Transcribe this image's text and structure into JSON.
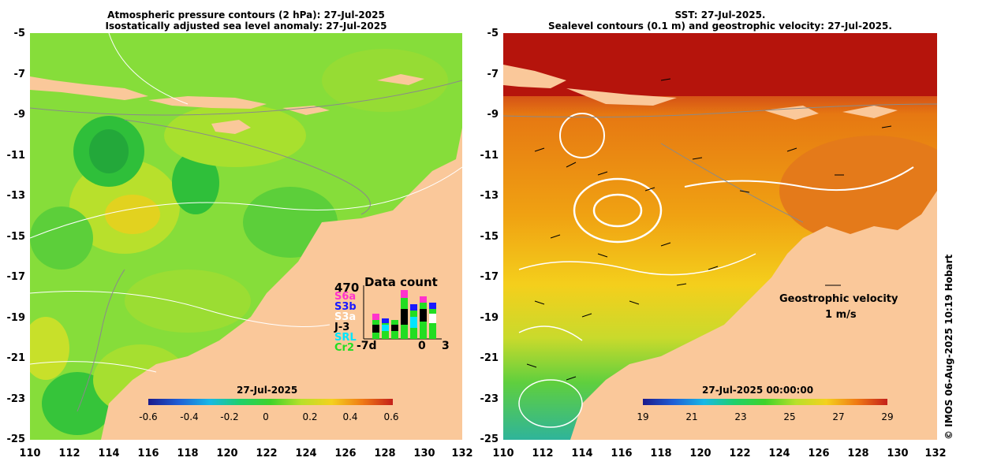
{
  "left_panel": {
    "title_line1": "Atmospheric pressure contours (2 hPa): 27-Jul-2025",
    "title_line2": "Isostatically adjusted sea level anomaly: 27-Jul-2025",
    "colorbar": {
      "label": "27-Jul-2025",
      "ticks": [
        "-0.6",
        "-0.4",
        "-0.2",
        "0",
        "0.2",
        "0.4",
        "0.6"
      ]
    },
    "data_count": {
      "title": "Data count",
      "max": "470",
      "missions": [
        {
          "name": "S6a",
          "color": "#ff33cc"
        },
        {
          "name": "S3b",
          "color": "#1a1aff"
        },
        {
          "name": "S3a",
          "color": "#ffffff"
        },
        {
          "name": "J-3",
          "color": "#000000"
        },
        {
          "name": "SRL",
          "color": "#00e5ff"
        },
        {
          "name": "Cr2",
          "color": "#22dd22"
        }
      ],
      "x_start": "-7d",
      "x_zero": "0",
      "x_end": "3"
    }
  },
  "right_panel": {
    "title_line1": "SST: 27-Jul-2025.",
    "title_line2": "Sealevel contours (0.1 m) and geostrophic velocity: 27-Jul-2025.",
    "colorbar": {
      "label": "27-Jul-2025 00:00:00",
      "ticks": [
        "19",
        "21",
        "23",
        "25",
        "27",
        "29"
      ]
    },
    "velocity_label": "Geostrophic velocity",
    "velocity_scale": "1 m/s"
  },
  "axes": {
    "y_ticks": [
      "-5",
      "-7",
      "-9",
      "-11",
      "-13",
      "-15",
      "-17",
      "-19",
      "-21",
      "-23",
      "-25"
    ],
    "x_ticks": [
      "110",
      "112",
      "114",
      "116",
      "118",
      "120",
      "122",
      "124",
      "126",
      "128",
      "130",
      "132"
    ]
  },
  "credit": "© IMOS 06-Aug-2025 10:19 Hobart"
}
